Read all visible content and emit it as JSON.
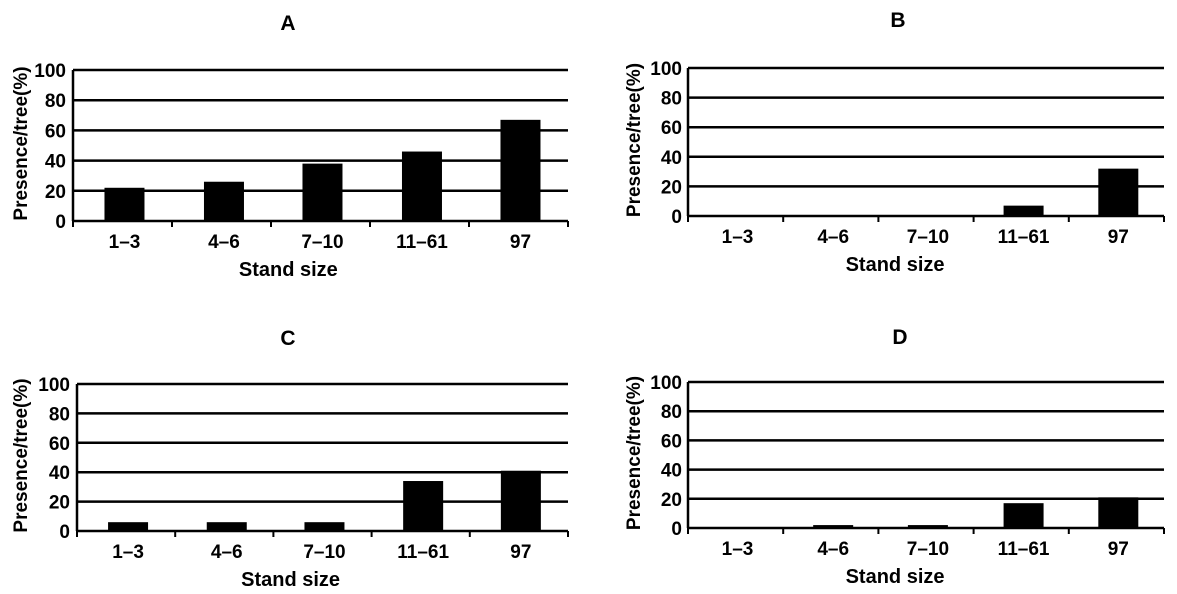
{
  "chart_data": [
    {
      "type": "bar",
      "title": "A",
      "xlabel": "Stand size",
      "ylabel": "Presence/tree(%)",
      "categories": [
        "1–3",
        "4–6",
        "7–10",
        "11–61",
        "97"
      ],
      "values": [
        22,
        26,
        38,
        46,
        67
      ],
      "ylim": [
        0,
        100
      ],
      "yticks": [
        0,
        20,
        40,
        60,
        80,
        100
      ],
      "grid": true,
      "bar_color": "#000000"
    },
    {
      "type": "bar",
      "title": "B",
      "xlabel": "Stand size",
      "ylabel": "Presence/tree(%)",
      "categories": [
        "1–3",
        "4–6",
        "7–10",
        "11–61",
        "97"
      ],
      "values": [
        0,
        0,
        0,
        7,
        32
      ],
      "ylim": [
        0,
        100
      ],
      "yticks": [
        0,
        20,
        40,
        60,
        80,
        100
      ],
      "grid": true,
      "bar_color": "#000000"
    },
    {
      "type": "bar",
      "title": "C",
      "xlabel": "Stand size",
      "ylabel": "Presence/tree(%)",
      "categories": [
        "1–3",
        "4–6",
        "7–10",
        "11–61",
        "97"
      ],
      "values": [
        6,
        6,
        6,
        34,
        41
      ],
      "ylim": [
        0,
        100
      ],
      "yticks": [
        0,
        20,
        40,
        60,
        80,
        100
      ],
      "grid": true,
      "bar_color": "#000000"
    },
    {
      "type": "bar",
      "title": "D",
      "xlabel": "Stand size",
      "ylabel": "Presence/tree(%)",
      "categories": [
        "1–3",
        "4–6",
        "7–10",
        "11–61",
        "97"
      ],
      "values": [
        0,
        2,
        2,
        17,
        21
      ],
      "ylim": [
        0,
        100
      ],
      "yticks": [
        0,
        20,
        40,
        60,
        80,
        100
      ],
      "grid": true,
      "bar_color": "#000000"
    }
  ]
}
